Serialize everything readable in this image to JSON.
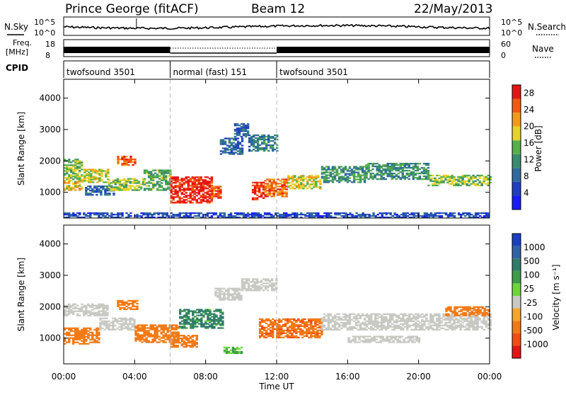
{
  "header": {
    "station": "Prince George (fitACF)",
    "beam": "Beam 12",
    "date": "22/May/2013"
  },
  "panel_labels": {
    "nsky": "N.Sky",
    "nsearch": "N.Search",
    "freq": "Freq.",
    "freq_unit": "[MHz]",
    "nave": "Nave",
    "cpid": "CPID"
  },
  "ticks": {
    "nsky_top": "10^5",
    "nsky_bottom": "10^0",
    "nsearch_top": "10^5",
    "nsearch_bottom": "10^0",
    "freq_top": "18",
    "freq_bottom": "8",
    "nave_top": "60",
    "nave_bottom": "0"
  },
  "cpid_segments": [
    {
      "label": "twofsound 3501",
      "start_h": 0,
      "end_h": 6
    },
    {
      "label": "normal (fast) 151",
      "start_h": 6,
      "end_h": 12
    },
    {
      "label": "twofsound 3501",
      "start_h": 12,
      "end_h": 24
    }
  ],
  "colors": {
    "power_scale": [
      "#1a1aff",
      "#1f3fc0",
      "#2f6aa0",
      "#3a8c6e",
      "#56b04a",
      "#e6d22a",
      "#f29b1a",
      "#f25a12",
      "#e61414"
    ],
    "velocity_scale": [
      "#1a3fc0",
      "#2f63a8",
      "#2f7c6a",
      "#3f9c4a",
      "#6dd63a",
      "#c9c9c4",
      "#f4a62a",
      "#f27a16",
      "#f24e12",
      "#e61414"
    ]
  },
  "chart_data": [
    {
      "type": "heatmap",
      "ylabel": "Slant Range [km]",
      "xlabel": "Time UT",
      "x_ticks": [
        "00:00",
        "04:00",
        "08:00",
        "12:00",
        "16:00",
        "20:00",
        "00:00"
      ],
      "xlim_hours": [
        0,
        24
      ],
      "y_ticks": [
        "1000",
        "2000",
        "3000",
        "4000"
      ],
      "ylim": [
        180,
        4600
      ],
      "colorbar": {
        "title": "Power [dB]",
        "ticks": [
          "4",
          "8",
          "12",
          "16",
          "20",
          "24",
          "28"
        ],
        "range": [
          0,
          30
        ]
      },
      "echo_bands": [
        {
          "t0": 0.0,
          "t1": 1.0,
          "r0": 1350,
          "r1": 2050,
          "db": 16
        },
        {
          "t0": 0.0,
          "t1": 1.0,
          "r0": 1050,
          "r1": 1350,
          "db": 20
        },
        {
          "t0": 1.0,
          "t1": 2.5,
          "r0": 1300,
          "r1": 1750,
          "db": 18
        },
        {
          "t0": 1.2,
          "t1": 2.8,
          "r0": 900,
          "r1": 1200,
          "db": 8
        },
        {
          "t0": 2.5,
          "t1": 4.5,
          "r0": 1050,
          "r1": 1450,
          "db": 16
        },
        {
          "t0": 3.0,
          "t1": 4.0,
          "r0": 1850,
          "r1": 2150,
          "db": 24
        },
        {
          "t0": 4.5,
          "t1": 6.0,
          "r0": 1050,
          "r1": 1700,
          "db": 14
        },
        {
          "t0": 6.0,
          "t1": 8.3,
          "r0": 650,
          "r1": 1500,
          "db": 28
        },
        {
          "t0": 8.3,
          "t1": 8.8,
          "r0": 800,
          "r1": 1200,
          "db": 26
        },
        {
          "t0": 8.8,
          "t1": 10.0,
          "r0": 2200,
          "r1": 2700,
          "db": 8
        },
        {
          "t0": 9.6,
          "t1": 10.4,
          "r0": 2750,
          "r1": 3200,
          "db": 8
        },
        {
          "t0": 10.4,
          "t1": 12.0,
          "r0": 2300,
          "r1": 2800,
          "db": 10
        },
        {
          "t0": 10.6,
          "t1": 11.2,
          "r0": 750,
          "r1": 1300,
          "db": 27
        },
        {
          "t0": 11.3,
          "t1": 12.6,
          "r0": 850,
          "r1": 1400,
          "db": 24
        },
        {
          "t0": 12.6,
          "t1": 14.5,
          "r0": 1100,
          "r1": 1550,
          "db": 18
        },
        {
          "t0": 14.5,
          "t1": 17.0,
          "r0": 1300,
          "r1": 1800,
          "db": 12
        },
        {
          "t0": 17.0,
          "t1": 20.5,
          "r0": 1400,
          "r1": 1900,
          "db": 12
        },
        {
          "t0": 20.5,
          "t1": 24.0,
          "r0": 1200,
          "r1": 1550,
          "db": 16
        },
        {
          "t0": 0.0,
          "t1": 24.0,
          "r0": 180,
          "r1": 320,
          "db": 6
        }
      ]
    },
    {
      "type": "heatmap",
      "ylabel": "Slant Range [km]",
      "xlabel": "Time UT",
      "x_ticks": [
        "00:00",
        "04:00",
        "08:00",
        "12:00",
        "16:00",
        "20:00",
        "00:00"
      ],
      "xlim_hours": [
        0,
        24
      ],
      "y_ticks": [
        "1000",
        "2000",
        "3000",
        "4000"
      ],
      "ylim": [
        180,
        4600
      ],
      "colorbar": {
        "title": "Velocity [m s⁻¹]",
        "ticks": [
          "1000",
          "500",
          "100",
          "25",
          "-25",
          "-100",
          "-500",
          "-1000"
        ],
        "range": [
          -1000,
          1000
        ]
      },
      "echo_bands": [
        {
          "t0": 0.0,
          "t1": 2.5,
          "r0": 1700,
          "r1": 2100,
          "v": 0
        },
        {
          "t0": 0.0,
          "t1": 2.0,
          "r0": 800,
          "r1": 1300,
          "v": -400
        },
        {
          "t0": 2.0,
          "t1": 4.0,
          "r0": 1250,
          "r1": 1650,
          "v": 0
        },
        {
          "t0": 3.0,
          "t1": 4.2,
          "r0": 1900,
          "r1": 2200,
          "v": -200
        },
        {
          "t0": 4.0,
          "t1": 6.5,
          "r0": 850,
          "r1": 1400,
          "v": -300
        },
        {
          "t0": 6.5,
          "t1": 9.0,
          "r0": 1300,
          "r1": 1900,
          "v": 150
        },
        {
          "t0": 6.0,
          "t1": 7.5,
          "r0": 700,
          "r1": 1100,
          "v": -300
        },
        {
          "t0": 8.5,
          "t1": 10.0,
          "r0": 2200,
          "r1": 2600,
          "v": 0
        },
        {
          "t0": 10.0,
          "t1": 12.0,
          "r0": 2500,
          "r1": 2900,
          "v": 0
        },
        {
          "t0": 11.0,
          "t1": 14.5,
          "r0": 1000,
          "r1": 1600,
          "v": -450
        },
        {
          "t0": 14.5,
          "t1": 24.0,
          "r0": 1250,
          "r1": 1750,
          "v": 0
        },
        {
          "t0": 16.0,
          "t1": 20.0,
          "r0": 850,
          "r1": 1050,
          "v": 0
        },
        {
          "t0": 21.5,
          "t1": 24.0,
          "r0": 1700,
          "r1": 2000,
          "v": -400
        },
        {
          "t0": 9.0,
          "t1": 10.0,
          "r0": 500,
          "r1": 700,
          "v": 60
        }
      ]
    }
  ]
}
